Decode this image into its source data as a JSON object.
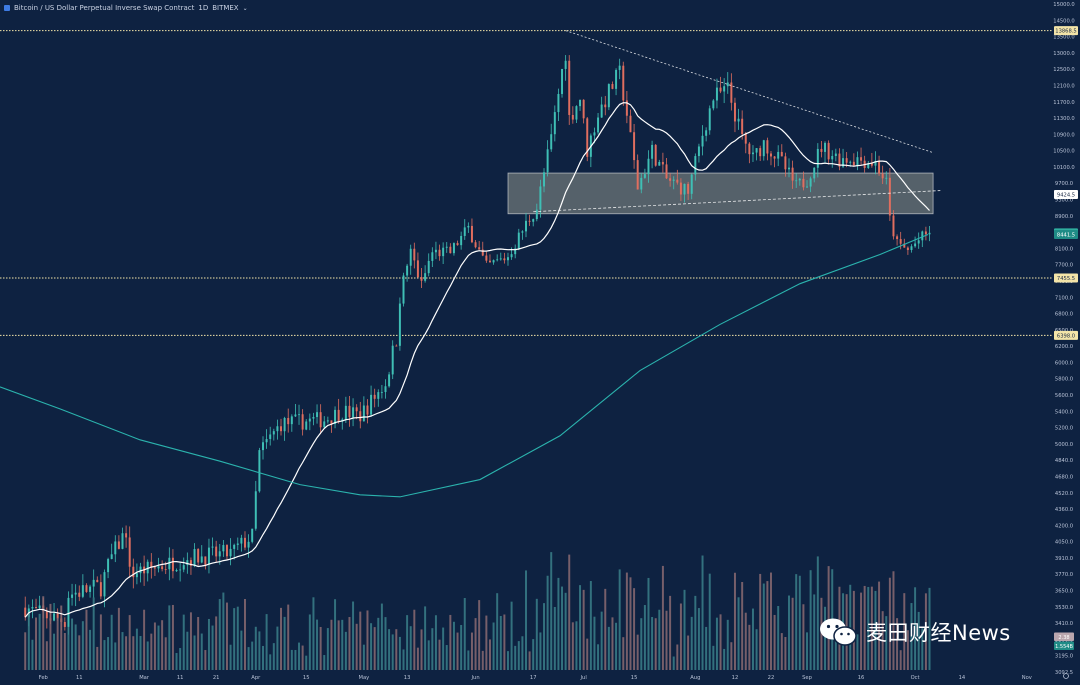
{
  "header": {
    "symbol_title": "Bitcoin / US Dollar Perpetual Inverse Swap Contract",
    "interval": "1D",
    "exchange": "BITMEX"
  },
  "watermark": {
    "text": "麦田财经News"
  },
  "colors": {
    "background": "#0e2241",
    "up_candle": "#3fbfb5",
    "down_candle": "#e06e5f",
    "ma_short": "#ffffff",
    "ma_long": "#2bb3ad",
    "level_lines": "#f3e4a8",
    "zone_fill": "#e8e4c0",
    "label_bg": "#f3e4a8"
  },
  "chart_data": {
    "type": "candlestick",
    "symbol": "Bitcoin / US Dollar Perpetual Inverse Swap Contract",
    "interval": "1D",
    "y_ticks": [
      "15000.0",
      "14500.0",
      "13500.0",
      "13000.0",
      "12500.0",
      "12100.0",
      "11700.0",
      "11300.0",
      "10900.0",
      "10500.0",
      "10100.0",
      "9700.0",
      "9300.0",
      "8900.0",
      "8500.0",
      "8100.0",
      "7700.0",
      "7400.0",
      "7100.0",
      "6800.0",
      "6500.0",
      "6200.0",
      "6000.0",
      "5800.0",
      "5600.0",
      "5400.0",
      "5200.0",
      "5000.0",
      "4840.0",
      "4680.0",
      "4520.0",
      "4360.0",
      "4200.0",
      "4050.0",
      "3910.0",
      "3770.0",
      "3650.0",
      "3530.0",
      "3410.0",
      "3300.0",
      "3195.0",
      "3092.5"
    ],
    "x_ticks": [
      "Feb",
      "11",
      "Mar",
      "11",
      "21",
      "Apr",
      "15",
      "May",
      "13",
      "Jun",
      "17",
      "Jul",
      "15",
      "Aug",
      "12",
      "22",
      "Sep",
      "16",
      "Oct",
      "14",
      "Nov"
    ],
    "horizontal_levels": [
      {
        "label": "13868.5",
        "value": 13868.5
      },
      {
        "label": "7455.5",
        "value": 7455.5
      },
      {
        "label": "6398.0",
        "value": 6398.0
      }
    ],
    "price_labels": [
      {
        "label": "9424.5",
        "value": 9424.5,
        "kind": "ma"
      },
      {
        "label": "8482.0",
        "value": 8482.0,
        "kind": "last"
      },
      {
        "label": "8441.5",
        "value": 8441.5,
        "kind": "ma"
      }
    ],
    "volume_labels": [
      "2.38",
      "1.554B"
    ],
    "zone": {
      "from_date": "2019-06-10",
      "to_date": "2019-10-06",
      "low": 8950,
      "high": 9950
    },
    "trendlines": [
      {
        "kind": "descending",
        "from": [
          "2019-06-26",
          13868.5
        ],
        "to": [
          "2019-10-06",
          10450
        ]
      },
      {
        "kind": "ascending",
        "from": [
          "2019-06-17",
          9000
        ],
        "to": [
          "2019-10-08",
          9520
        ]
      }
    ],
    "x_start": "2019-01-20",
    "x_end": "2019-11-08",
    "candles_ohlc_by_date_keyframes": [
      [
        "2019-01-20",
        3600
      ],
      [
        "2019-02-01",
        3470
      ],
      [
        "2019-02-07",
        3430
      ],
      [
        "2019-02-08",
        3620
      ],
      [
        "2019-02-17",
        3680
      ],
      [
        "2019-02-20",
        3920
      ],
      [
        "2019-02-24",
        4150
      ],
      [
        "2019-02-25",
        3780
      ],
      [
        "2019-03-03",
        3820
      ],
      [
        "2019-03-15",
        3920
      ],
      [
        "2019-03-25",
        3950
      ],
      [
        "2019-03-31",
        4100
      ],
      [
        "2019-04-02",
        4900
      ],
      [
        "2019-04-08",
        5250
      ],
      [
        "2019-04-20",
        5300
      ],
      [
        "2019-04-25",
        5400
      ],
      [
        "2019-04-30",
        5350
      ],
      [
        "2019-05-07",
        5750
      ],
      [
        "2019-05-10",
        6300
      ],
      [
        "2019-05-11",
        7100
      ],
      [
        "2019-05-14",
        8000
      ],
      [
        "2019-05-17",
        7300
      ],
      [
        "2019-05-20",
        8000
      ],
      [
        "2019-05-25",
        8000
      ],
      [
        "2019-05-30",
        8600
      ],
      [
        "2019-06-04",
        7650
      ],
      [
        "2019-06-10",
        7900
      ],
      [
        "2019-06-15",
        8700
      ],
      [
        "2019-06-18",
        9100
      ],
      [
        "2019-06-22",
        10800
      ],
      [
        "2019-06-26",
        13000
      ],
      [
        "2019-06-27",
        11300
      ],
      [
        "2019-06-30",
        11800
      ],
      [
        "2019-07-02",
        10500
      ],
      [
        "2019-07-05",
        11400
      ],
      [
        "2019-07-09",
        12100
      ],
      [
        "2019-07-11",
        12400
      ],
      [
        "2019-07-13",
        11400
      ],
      [
        "2019-07-16",
        9600
      ],
      [
        "2019-07-20",
        10500
      ],
      [
        "2019-07-24",
        9800
      ],
      [
        "2019-07-30",
        9500
      ],
      [
        "2019-08-03",
        10900
      ],
      [
        "2019-08-06",
        11800
      ],
      [
        "2019-08-10",
        12000
      ],
      [
        "2019-08-14",
        10800
      ],
      [
        "2019-08-17",
        10300
      ],
      [
        "2019-08-20",
        10700
      ],
      [
        "2019-08-25",
        10200
      ],
      [
        "2019-08-29",
        9600
      ],
      [
        "2019-09-01",
        9800
      ],
      [
        "2019-09-05",
        10600
      ],
      [
        "2019-09-10",
        10300
      ],
      [
        "2019-09-15",
        10300
      ],
      [
        "2019-09-20",
        10200
      ],
      [
        "2019-09-23",
        9700
      ],
      [
        "2019-09-24",
        8800
      ],
      [
        "2019-09-26",
        8200
      ],
      [
        "2019-09-29",
        8050
      ],
      [
        "2019-10-02",
        8300
      ],
      [
        "2019-10-05",
        8482
      ]
    ]
  }
}
